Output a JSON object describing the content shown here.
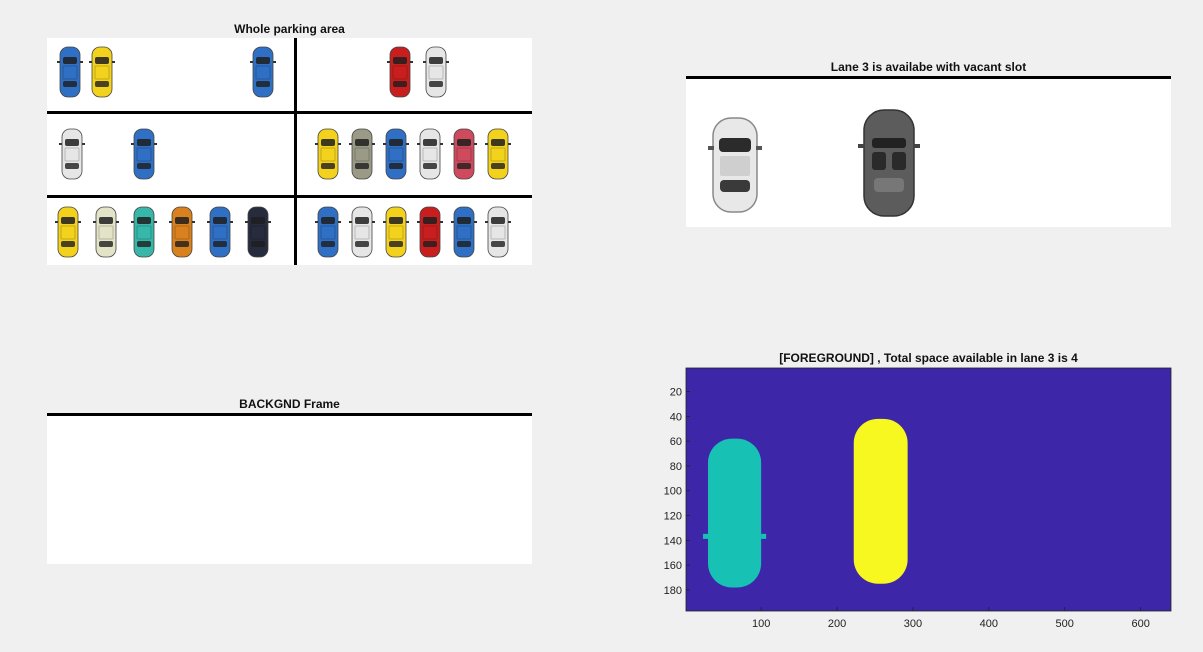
{
  "figure": {
    "panels": {
      "whole_parking": {
        "title": "Whole parking area"
      },
      "lane3": {
        "title": "Lane 3 is availabe with vacant slot"
      },
      "background": {
        "title": "BACKGND Frame"
      },
      "foreground": {
        "title": "[FOREGROUND] , Total space available in lane 3 is 4"
      }
    },
    "colors": {
      "figure_bg": "#f0f0f0",
      "axes_bg": "#3d26a8",
      "blob_teal": "#17c1b3",
      "blob_yellow": "#f6f820"
    }
  },
  "parking_cars": {
    "row1_left": [
      "blue-car",
      "yellow-car",
      "blue-car"
    ],
    "row1_right": [
      "red-car",
      "white-car"
    ],
    "row2_left": [
      "white-car",
      "blue-car"
    ],
    "row2_right": [
      "yellow-car",
      "grey-car",
      "blue-car",
      "white-car",
      "pink-car",
      "yellow-car"
    ],
    "row3_left": [
      "yellow-car",
      "beige-car",
      "teal-car",
      "orange-car",
      "blue-car",
      "police-car"
    ],
    "row3_right": [
      "blue-car",
      "white-car",
      "yellow-car",
      "red-car",
      "blue-car",
      "white-car"
    ]
  },
  "chart_data": {
    "type": "heatmap",
    "title": "[FOREGROUND] , Total space available in lane 3 is 4",
    "xticks": [
      "100",
      "200",
      "300",
      "400",
      "500",
      "600"
    ],
    "yticks": [
      "20",
      "40",
      "60",
      "80",
      "100",
      "120",
      "140",
      "160",
      "180"
    ],
    "xlim": [
      1,
      640
    ],
    "ylim": [
      1,
      197
    ],
    "objects": [
      {
        "label": "object 1",
        "color": "#17c1b3",
        "x": [
          30,
          100
        ],
        "y": [
          58,
          178
        ]
      },
      {
        "label": "object 2",
        "color": "#f6f820",
        "x": [
          222,
          293
        ],
        "y": [
          42,
          175
        ]
      }
    ]
  }
}
